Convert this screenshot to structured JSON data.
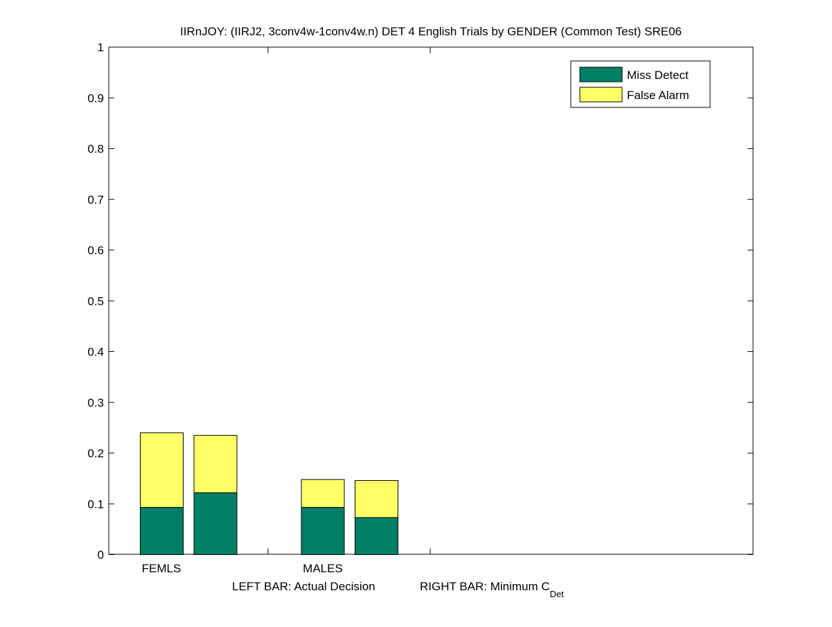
{
  "chart_data": {
    "type": "bar",
    "stacked": true,
    "title": "IIRnJOY: (IIRJ2, 3conv4w-1conv4w.n) DET 4 English Trials by GENDER (Common Test) SRE06",
    "groups": [
      "FEMLS",
      "MALES"
    ],
    "bars_per_group": [
      "Actual Decision",
      "Minimum C_Det"
    ],
    "xlabel": {
      "left": "LEFT BAR: Actual Decision",
      "right": "RIGHT BAR: Minimum C",
      "right_sub": "Det"
    },
    "ylabel": "",
    "ylim": [
      0,
      1
    ],
    "yticks": [
      "0",
      "0.1",
      "0.2",
      "0.3",
      "0.4",
      "0.5",
      "0.6",
      "0.7",
      "0.8",
      "0.9",
      "1"
    ],
    "series": [
      {
        "name": "Miss Detect",
        "color": "#007f67",
        "values": [
          0.093,
          0.122,
          0.093,
          0.073
        ]
      },
      {
        "name": "False Alarm",
        "color": "#ffff66",
        "values": [
          0.147,
          0.113,
          0.055,
          0.073
        ]
      }
    ],
    "legend_position": "top-right",
    "grid": false
  }
}
